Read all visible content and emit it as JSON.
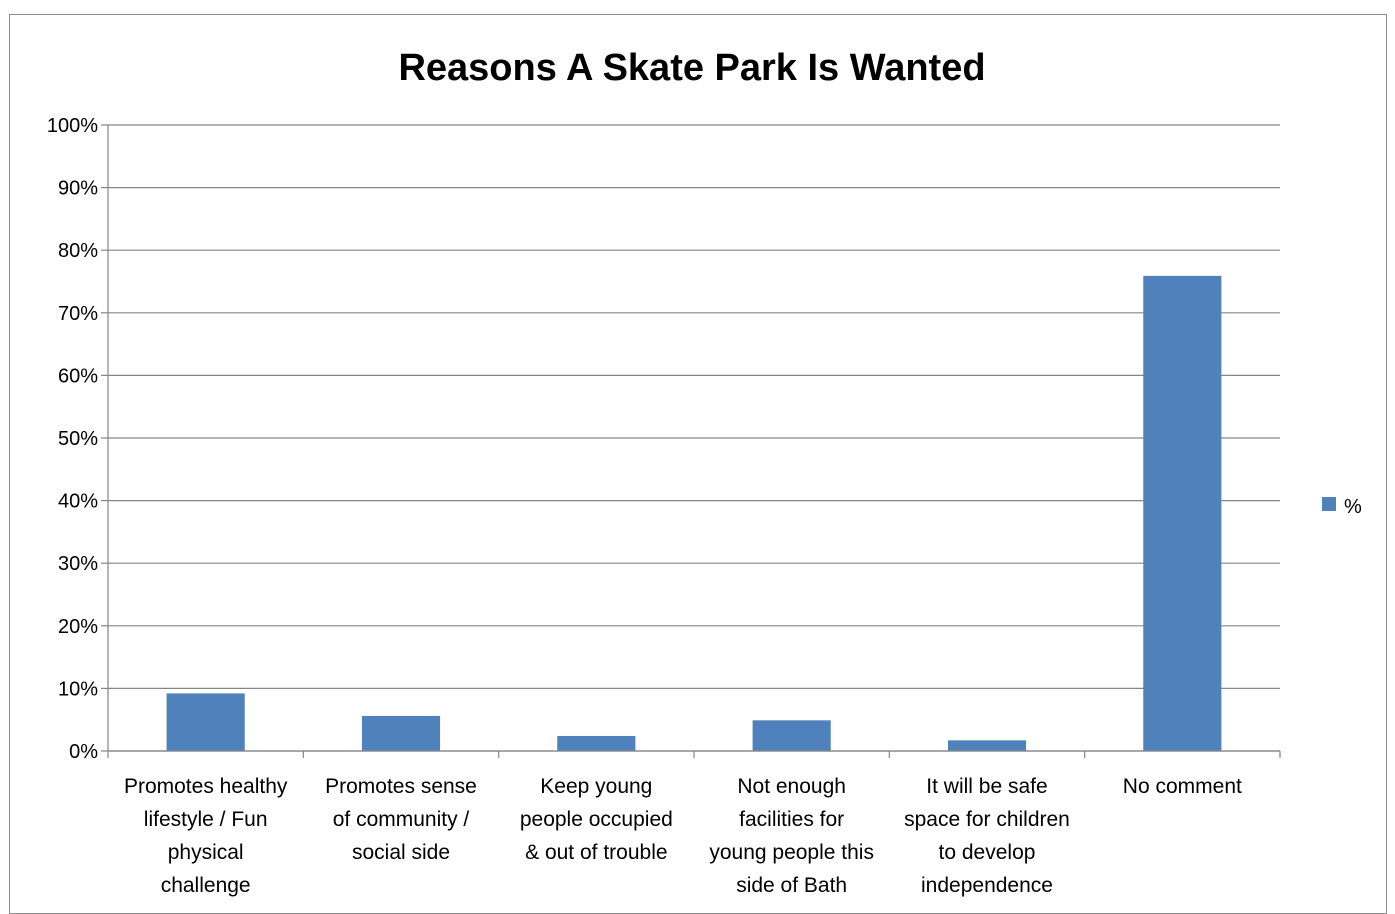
{
  "chart_data": {
    "type": "bar",
    "title": "Reasons A Skate Park Is Wanted",
    "xlabel": "",
    "ylabel": "",
    "categories": [
      [
        "Promotes healthy",
        "lifestyle / Fun",
        "physical",
        "challenge"
      ],
      [
        "Promotes sense",
        "of community /",
        "social side"
      ],
      [
        "Keep young",
        "people occupied",
        "& out of trouble"
      ],
      [
        "Not enough",
        "facilities for",
        "young people this",
        "side of Bath"
      ],
      [
        "It will be safe",
        "space for children",
        "to develop",
        "independence"
      ],
      [
        "No comment"
      ]
    ],
    "series": [
      {
        "name": "%",
        "color": "#4f81bd",
        "values": [
          9.2,
          5.6,
          2.4,
          4.9,
          1.7,
          75.9
        ]
      }
    ],
    "ylim": [
      0,
      100
    ],
    "yticks": [
      "0%",
      "10%",
      "20%",
      "30%",
      "40%",
      "50%",
      "60%",
      "70%",
      "80%",
      "90%",
      "100%"
    ],
    "grid": true,
    "legend": "right"
  }
}
